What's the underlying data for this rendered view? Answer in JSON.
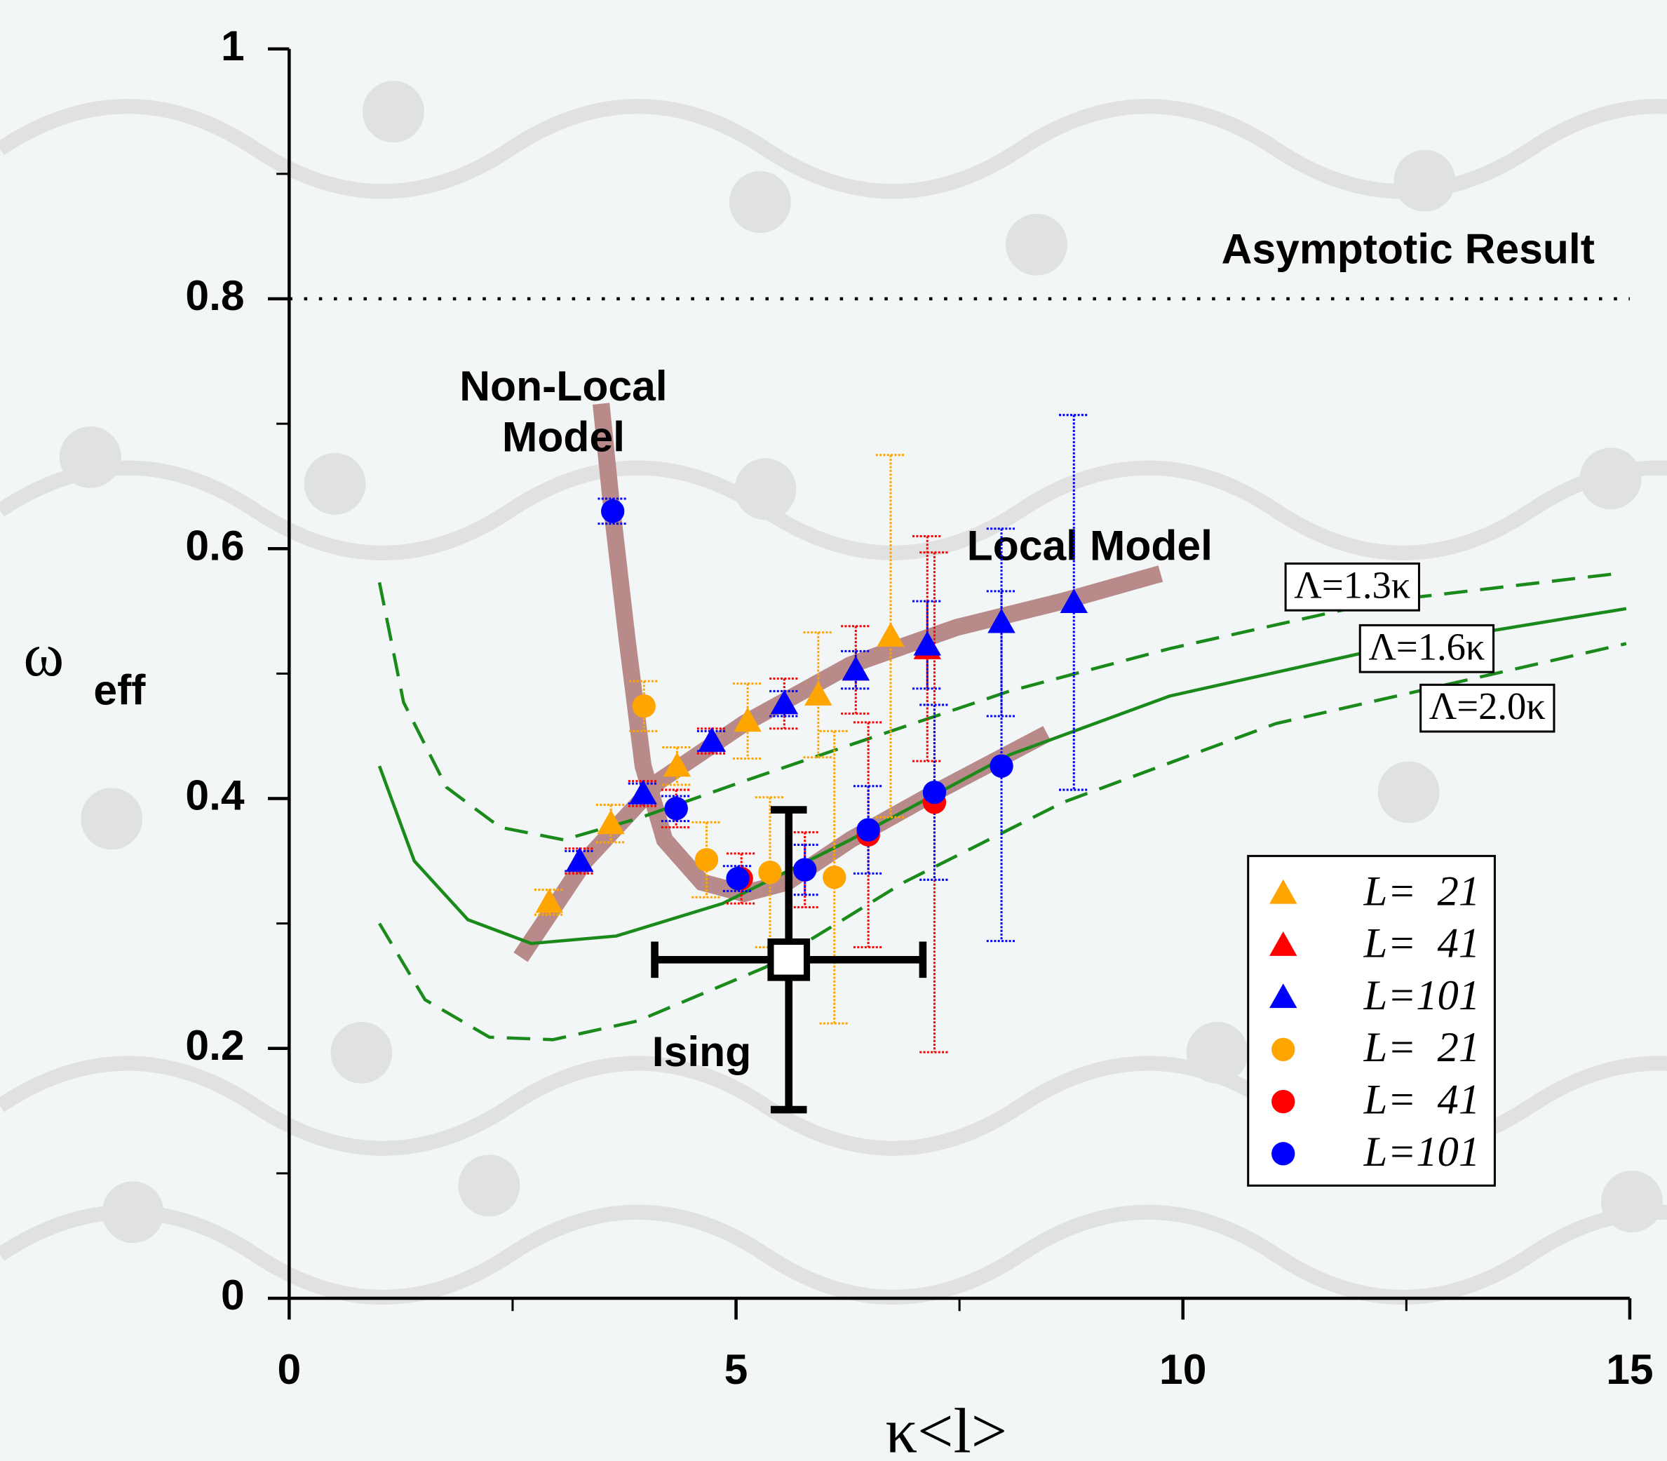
{
  "chart_data": {
    "type": "scatter",
    "xlabel": "κ<l>",
    "ylabel": "ω",
    "ylabel_sub": "eff",
    "xlim": [
      0,
      15
    ],
    "ylim": [
      0,
      1
    ],
    "xticks": [
      0,
      5,
      10,
      15
    ],
    "yticks": [
      0,
      0.2,
      0.4,
      0.6,
      0.8,
      1
    ],
    "xminor_ticks": [
      2.5,
      7.5,
      12.5
    ],
    "yminor_ticks": [
      0.1,
      0.3,
      0.5,
      0.7,
      0.9
    ],
    "series": [
      {
        "name": "L=  21",
        "color": "#ffa500",
        "marker": "triangle",
        "x": [
          2.91,
          3.6,
          4.34,
          5.13,
          5.92,
          6.73
        ],
        "values": [
          0.317,
          0.38,
          0.426,
          0.462,
          0.483,
          0.53
        ],
        "errors": [
          0.01,
          0.015,
          0.015,
          0.03,
          0.05,
          0.145
        ]
      },
      {
        "name": "L=  41",
        "color": "#ff0000",
        "marker": "triangle",
        "x": [
          3.25,
          3.96,
          4.73,
          5.54,
          6.34,
          7.14
        ],
        "values": [
          0.35,
          0.404,
          0.446,
          0.476,
          0.503,
          0.52
        ],
        "errors": [
          0.01,
          0.01,
          0.01,
          0.02,
          0.035,
          0.09
        ]
      },
      {
        "name": "L=101",
        "color": "#0000ff",
        "marker": "triangle",
        "x": [
          3.25,
          3.96,
          4.73,
          5.54,
          6.34,
          7.14,
          7.97,
          8.78
        ],
        "values": [
          0.35,
          0.404,
          0.446,
          0.476,
          0.503,
          0.523,
          0.541,
          0.557
        ],
        "errors": [
          0.008,
          0.008,
          0.008,
          0.01,
          0.015,
          0.035,
          0.075,
          0.15
        ]
      },
      {
        "name": "L=  21",
        "color": "#ffa500",
        "marker": "circle",
        "x": [
          3.97,
          4.67,
          5.38,
          6.1
        ],
        "values": [
          0.474,
          0.351,
          0.341,
          0.337
        ],
        "errors": [
          0.02,
          0.03,
          0.06,
          0.117
        ]
      },
      {
        "name": "L=  41",
        "color": "#ff0000",
        "marker": "circle",
        "x": [
          4.33,
          5.06,
          5.77,
          6.48,
          7.22
        ],
        "values": [
          0.392,
          0.336,
          0.343,
          0.371,
          0.397
        ],
        "errors": [
          0.015,
          0.02,
          0.03,
          0.09,
          0.2
        ]
      },
      {
        "name": "L=101",
        "color": "#0000ff",
        "marker": "circle",
        "x": [
          3.62,
          4.33,
          5.02,
          5.77,
          6.48,
          7.22,
          7.97
        ],
        "values": [
          0.63,
          0.392,
          0.336,
          0.343,
          0.375,
          0.405,
          0.426
        ],
        "errors": [
          0.01,
          0.01,
          0.01,
          0.02,
          0.035,
          0.07,
          0.14
        ]
      }
    ],
    "curves": [
      {
        "label": [
          "Non-Local",
          "Model"
        ],
        "color": "#b88a8a",
        "width": 16,
        "dash": "none",
        "x": [
          3.49,
          3.6,
          3.78,
          3.96,
          4.2,
          4.62,
          5.09,
          5.57,
          6.28,
          7.23,
          8.48
        ],
        "y": [
          0.716,
          0.639,
          0.528,
          0.426,
          0.367,
          0.333,
          0.324,
          0.333,
          0.367,
          0.405,
          0.452
        ]
      },
      {
        "label": [
          "Local Model"
        ],
        "color": "#b88a8a",
        "width": 16,
        "dash": "none",
        "x": [
          2.59,
          3.31,
          4.14,
          5.09,
          6.28,
          7.47,
          8.66,
          9.75
        ],
        "y": [
          0.273,
          0.35,
          0.414,
          0.46,
          0.507,
          0.537,
          0.558,
          0.58
        ]
      },
      {
        "label": [
          "Λ=1.3κ"
        ],
        "color": "#1a8a1a",
        "width": 3,
        "dash": "22 12",
        "x": [
          1.01,
          1.28,
          1.76,
          2.36,
          3.07,
          3.9,
          5.09,
          6.28,
          8.06,
          9.85,
          12.23,
          14.85
        ],
        "y": [
          0.573,
          0.477,
          0.409,
          0.377,
          0.367,
          0.384,
          0.414,
          0.443,
          0.486,
          0.52,
          0.558,
          0.58
        ]
      },
      {
        "label": [
          "Λ=1.6κ"
        ],
        "color": "#1a8a1a",
        "width": 3,
        "dash": "none",
        "x": [
          1.01,
          1.4,
          2.0,
          2.71,
          3.66,
          4.85,
          6.28,
          8.06,
          9.85,
          12.23,
          14.96
        ],
        "y": [
          0.426,
          0.35,
          0.303,
          0.284,
          0.29,
          0.316,
          0.367,
          0.435,
          0.482,
          0.52,
          0.552
        ]
      },
      {
        "label": [
          "Λ=2.0κ"
        ],
        "color": "#1a8a1a",
        "width": 3,
        "dash": "22 12",
        "x": [
          1.01,
          1.52,
          2.24,
          2.95,
          3.9,
          5.33,
          6.88,
          8.66,
          11.04,
          14.96
        ],
        "y": [
          0.3,
          0.239,
          0.209,
          0.207,
          0.222,
          0.265,
          0.333,
          0.397,
          0.46,
          0.524
        ]
      }
    ],
    "ising": {
      "label": "Ising",
      "x": 5.59,
      "y": 0.271,
      "xerr": 1.5,
      "yerr": 0.12
    },
    "hline": {
      "label": "Asymptotic Result",
      "y": 0.8
    }
  }
}
